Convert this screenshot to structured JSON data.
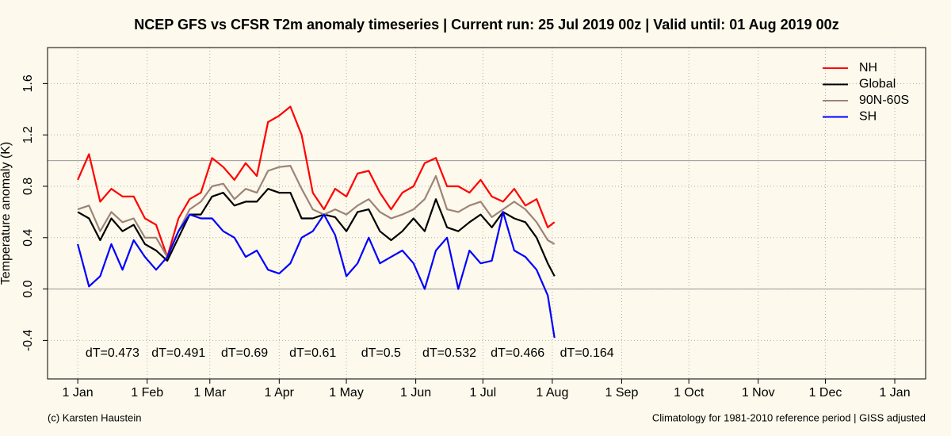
{
  "chart_data": {
    "type": "line",
    "title": "NCEP GFS vs CFSR T2m anomaly timeseries | Current run: 25 Jul 2019 00z | Valid until: 01 Aug 2019 00z",
    "y_label": "Temperature anomaly (K)",
    "footer_left": "(c) Karsten Haustein",
    "footer_right": "Climatology for 1981-2010 reference period | GISS adjusted",
    "x": [
      0,
      5,
      10,
      15,
      20,
      25,
      30,
      35,
      40,
      45,
      50,
      55,
      60,
      65,
      70,
      75,
      80,
      85,
      90,
      95,
      100,
      105,
      110,
      115,
      120,
      125,
      130,
      135,
      140,
      145,
      150,
      155,
      160,
      165,
      170,
      175,
      180,
      185,
      190,
      195,
      200,
      205,
      210,
      213
    ],
    "series": [
      {
        "name": "NH",
        "color": "#ff0000",
        "values": [
          0.85,
          1.05,
          0.68,
          0.78,
          0.72,
          0.72,
          0.55,
          0.5,
          0.25,
          0.55,
          0.7,
          0.75,
          1.02,
          0.95,
          0.85,
          0.98,
          0.88,
          1.3,
          1.35,
          1.42,
          1.2,
          0.75,
          0.62,
          0.78,
          0.72,
          0.9,
          0.92,
          0.75,
          0.62,
          0.75,
          0.8,
          0.98,
          1.02,
          0.8,
          0.8,
          0.75,
          0.85,
          0.72,
          0.68,
          0.78,
          0.65,
          0.7,
          0.48,
          0.52
        ]
      },
      {
        "name": "Global",
        "color": "#000000",
        "values": [
          0.6,
          0.55,
          0.38,
          0.55,
          0.45,
          0.5,
          0.35,
          0.3,
          0.22,
          0.4,
          0.58,
          0.58,
          0.72,
          0.75,
          0.65,
          0.68,
          0.68,
          0.78,
          0.75,
          0.75,
          0.55,
          0.55,
          0.58,
          0.56,
          0.45,
          0.6,
          0.62,
          0.45,
          0.38,
          0.45,
          0.55,
          0.45,
          0.7,
          0.48,
          0.45,
          0.52,
          0.58,
          0.48,
          0.6,
          0.55,
          0.52,
          0.4,
          0.2,
          0.1
        ]
      },
      {
        "name": "90N-60S",
        "color": "#9c8478",
        "values": [
          0.62,
          0.65,
          0.45,
          0.6,
          0.52,
          0.55,
          0.4,
          0.4,
          0.25,
          0.45,
          0.62,
          0.68,
          0.8,
          0.82,
          0.7,
          0.78,
          0.75,
          0.92,
          0.95,
          0.96,
          0.78,
          0.62,
          0.58,
          0.62,
          0.58,
          0.65,
          0.7,
          0.6,
          0.55,
          0.58,
          0.62,
          0.7,
          0.88,
          0.62,
          0.6,
          0.65,
          0.68,
          0.56,
          0.62,
          0.68,
          0.62,
          0.52,
          0.38,
          0.35
        ]
      },
      {
        "name": "SH",
        "color": "#0000ff",
        "values": [
          0.35,
          0.02,
          0.1,
          0.35,
          0.15,
          0.38,
          0.25,
          0.15,
          0.25,
          0.45,
          0.58,
          0.55,
          0.55,
          0.45,
          0.4,
          0.25,
          0.3,
          0.15,
          0.12,
          0.2,
          0.4,
          0.45,
          0.58,
          0.42,
          0.1,
          0.2,
          0.4,
          0.2,
          0.25,
          0.3,
          0.2,
          0.0,
          0.3,
          0.4,
          0.0,
          0.3,
          0.2,
          0.22,
          0.6,
          0.3,
          0.25,
          0.15,
          -0.05,
          -0.38
        ]
      }
    ],
    "xlim": [
      -13.5,
      378.8
    ],
    "xticks": [
      {
        "value": 0,
        "label": "1 Jan"
      },
      {
        "value": 31,
        "label": "1 Feb"
      },
      {
        "value": 59,
        "label": "1 Mar"
      },
      {
        "value": 90,
        "label": "1 Apr"
      },
      {
        "value": 120,
        "label": "1 May"
      },
      {
        "value": 151,
        "label": "1 Jun"
      },
      {
        "value": 181,
        "label": "1 Jul"
      },
      {
        "value": 212,
        "label": "1 Aug"
      },
      {
        "value": 243,
        "label": "1 Sep"
      },
      {
        "value": 273,
        "label": "1 Oct"
      },
      {
        "value": 304,
        "label": "1 Nov"
      },
      {
        "value": 334,
        "label": "1 Dec"
      },
      {
        "value": 365,
        "label": "1 Jan"
      }
    ],
    "ylim": [
      -0.7,
      1.88
    ],
    "yticks": [
      {
        "value": -0.4,
        "label": "-0.4"
      },
      {
        "value": 0,
        "label": "0.0"
      },
      {
        "value": 0.4,
        "label": "0.4"
      },
      {
        "value": 0.8,
        "label": "0.8"
      },
      {
        "value": 1.2,
        "label": "1.2"
      },
      {
        "value": 1.6,
        "label": "1.6"
      }
    ],
    "reference_lines": [
      0,
      1.0
    ],
    "annotations": [
      "dT=0.473",
      "dT=0.491",
      "dT=0.69",
      "dT=0.61",
      "dT=0.5",
      "dT=0.532",
      "dT=0.466",
      "dT=0.164"
    ],
    "grid": true,
    "legend": "top-right"
  }
}
